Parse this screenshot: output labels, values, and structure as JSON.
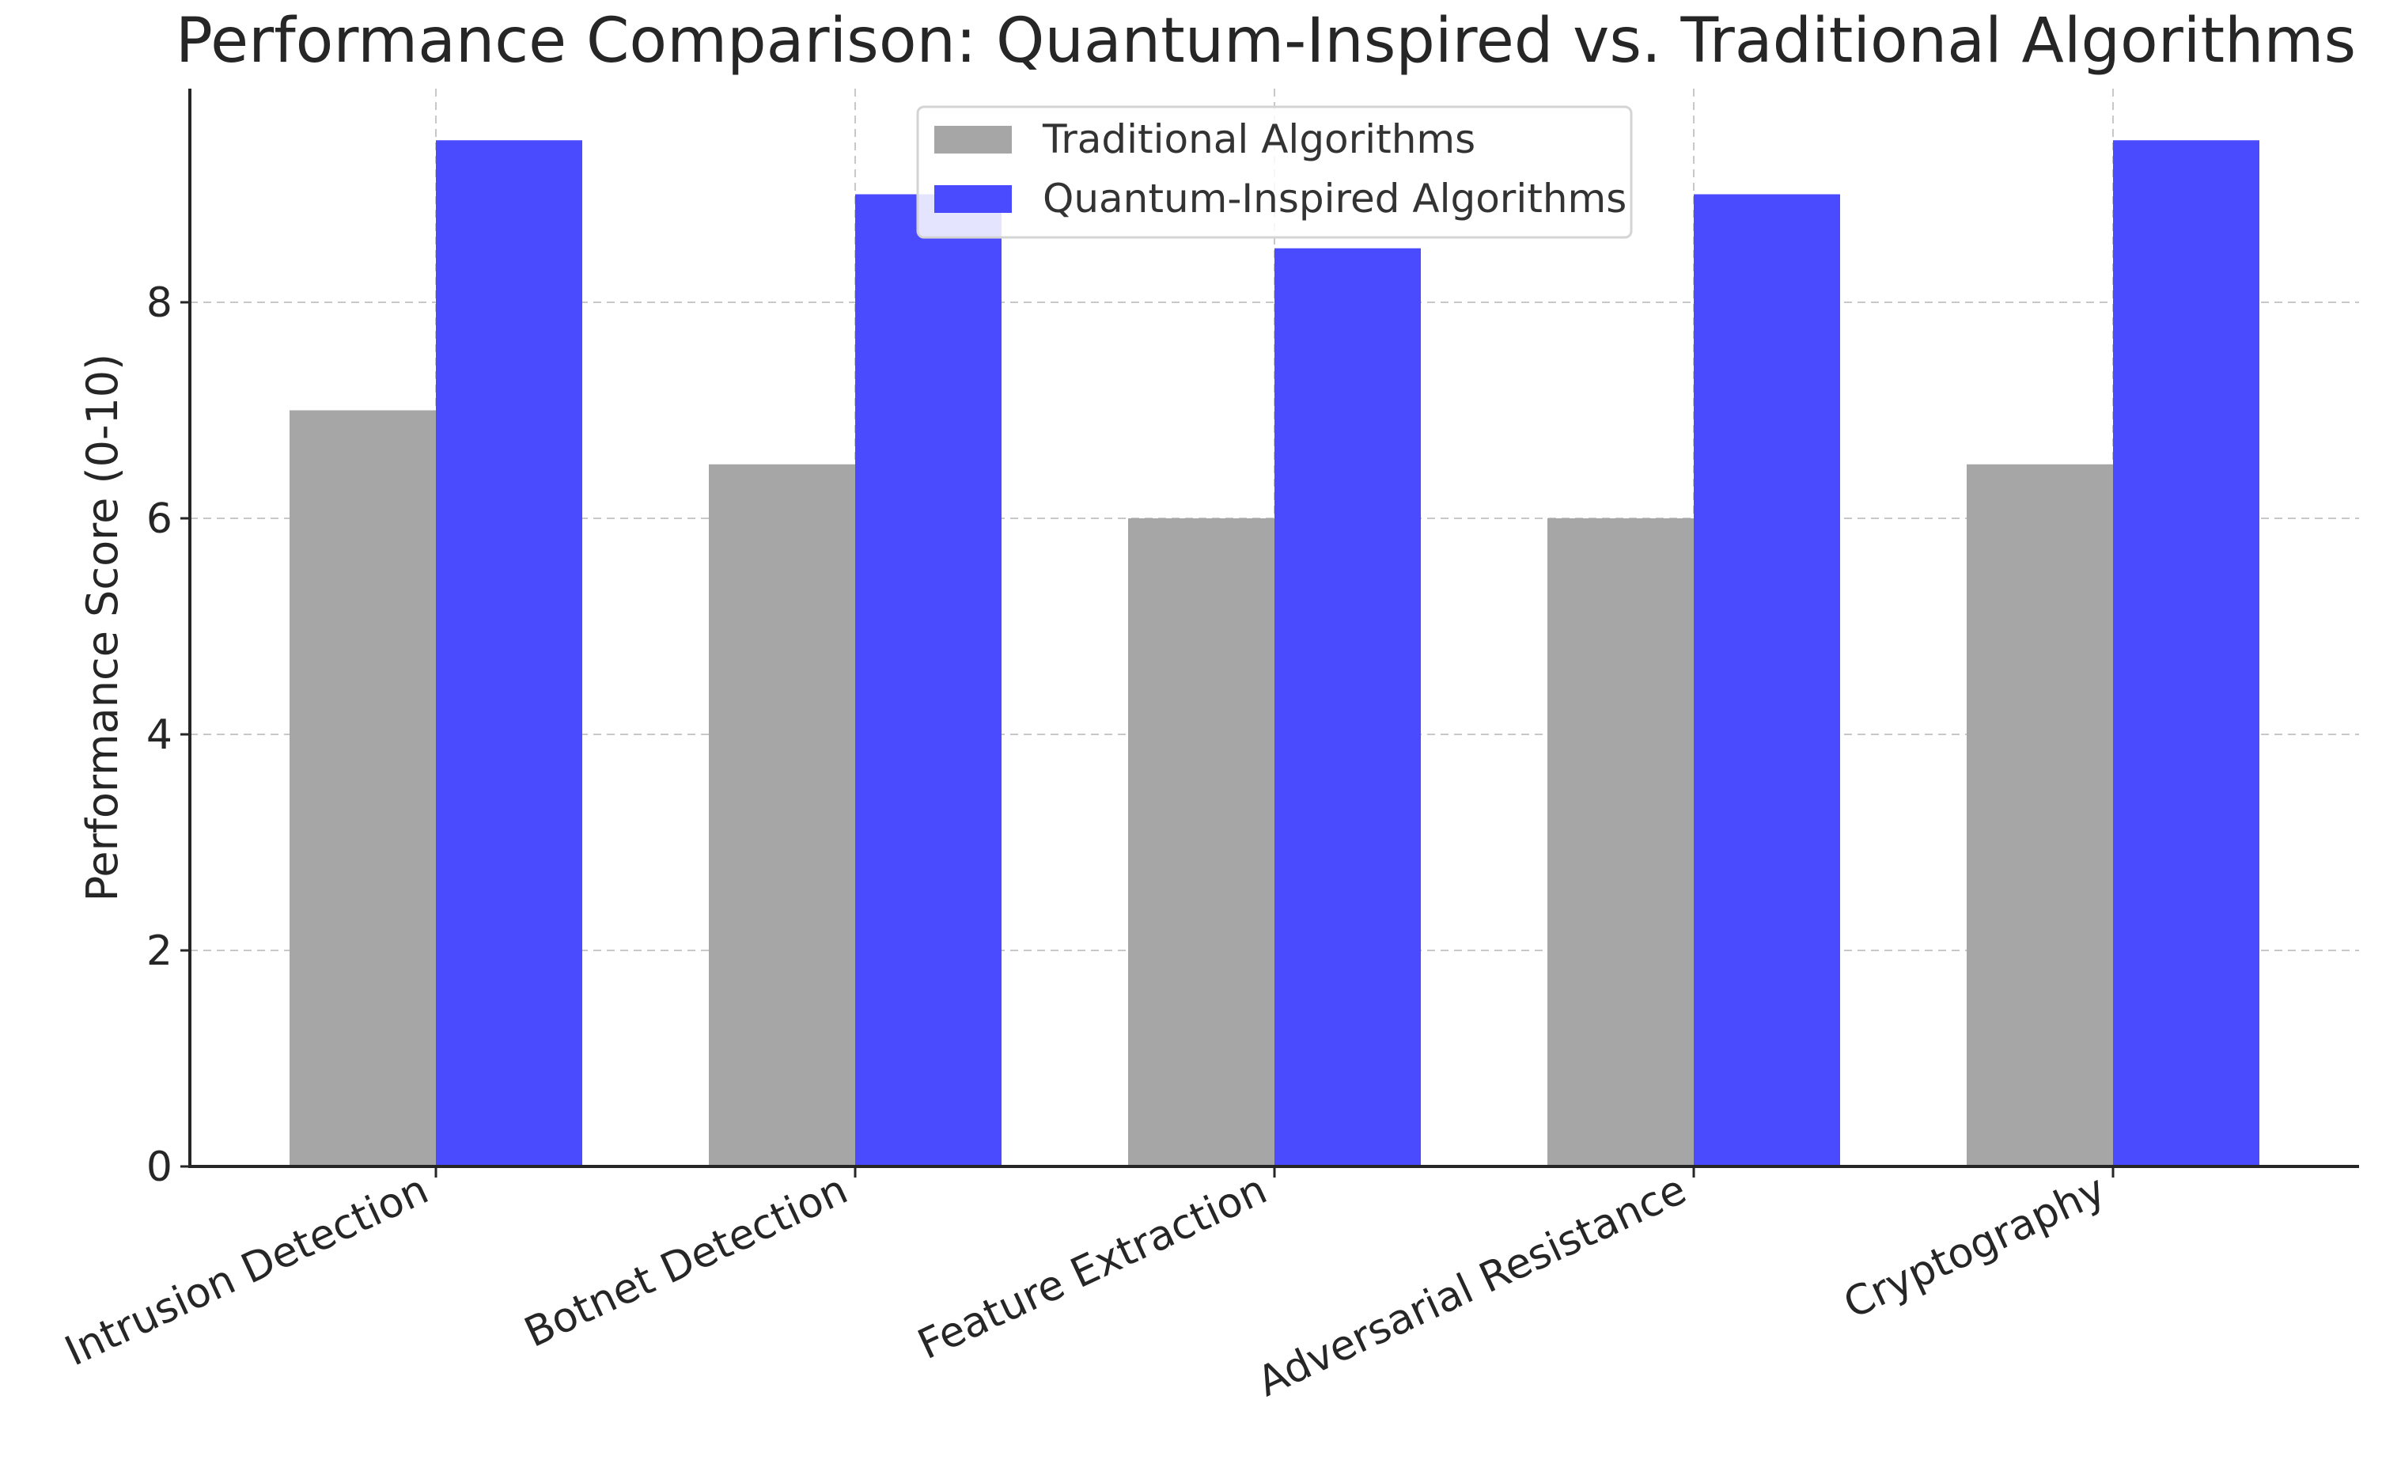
{
  "chart_data": {
    "type": "bar",
    "title": "Performance Comparison: Quantum-Inspired vs. Traditional Algorithms",
    "xlabel": "",
    "ylabel": "Performance Score (0-10)",
    "categories": [
      "Intrusion Detection",
      "Botnet Detection",
      "Feature Extraction",
      "Adversarial Resistance",
      "Cryptography"
    ],
    "series": [
      {
        "name": "Traditional Algorithms",
        "color": "#a6a6a6",
        "values": [
          7,
          6.5,
          6,
          6,
          6.5
        ]
      },
      {
        "name": "Quantum-Inspired Algorithms",
        "color": "#4a4aff",
        "values": [
          9.5,
          9,
          8.5,
          9,
          9.5
        ]
      }
    ],
    "ylim": [
      0,
      10
    ],
    "yticks": [
      0,
      2,
      4,
      6,
      8
    ],
    "grid": true,
    "legend_position": "top-center"
  }
}
